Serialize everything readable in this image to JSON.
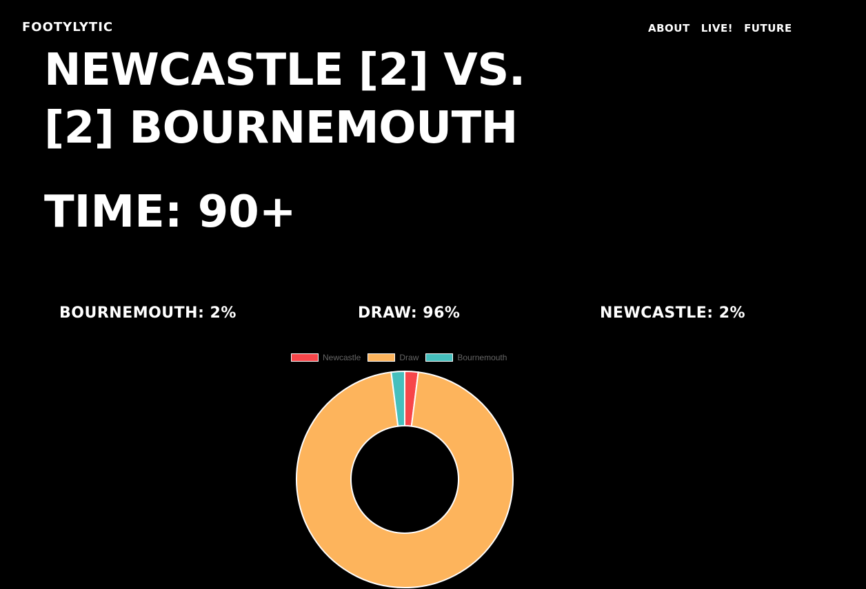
{
  "header": {
    "brand": "FOOTYLYTIC",
    "nav": [
      "ABOUT",
      "LIVE!",
      "FUTURE"
    ]
  },
  "match": {
    "title": "NEWCASTLE [2] VS. [2] BOURNEMOUTH",
    "time": "TIME: 90+"
  },
  "probabilities": {
    "bournemouth": "BOURNEMOUTH: 2%",
    "draw": "DRAW: 96%",
    "newcastle": "NEWCASTLE: 2%"
  },
  "chart_data": {
    "type": "pie",
    "variant": "doughnut",
    "labels": [
      "Newcastle",
      "Draw",
      "Bournemouth"
    ],
    "values": [
      2,
      96,
      2
    ],
    "colors": [
      "#F7464A",
      "#FDB45C",
      "#46BFBD"
    ],
    "legend": "top"
  }
}
